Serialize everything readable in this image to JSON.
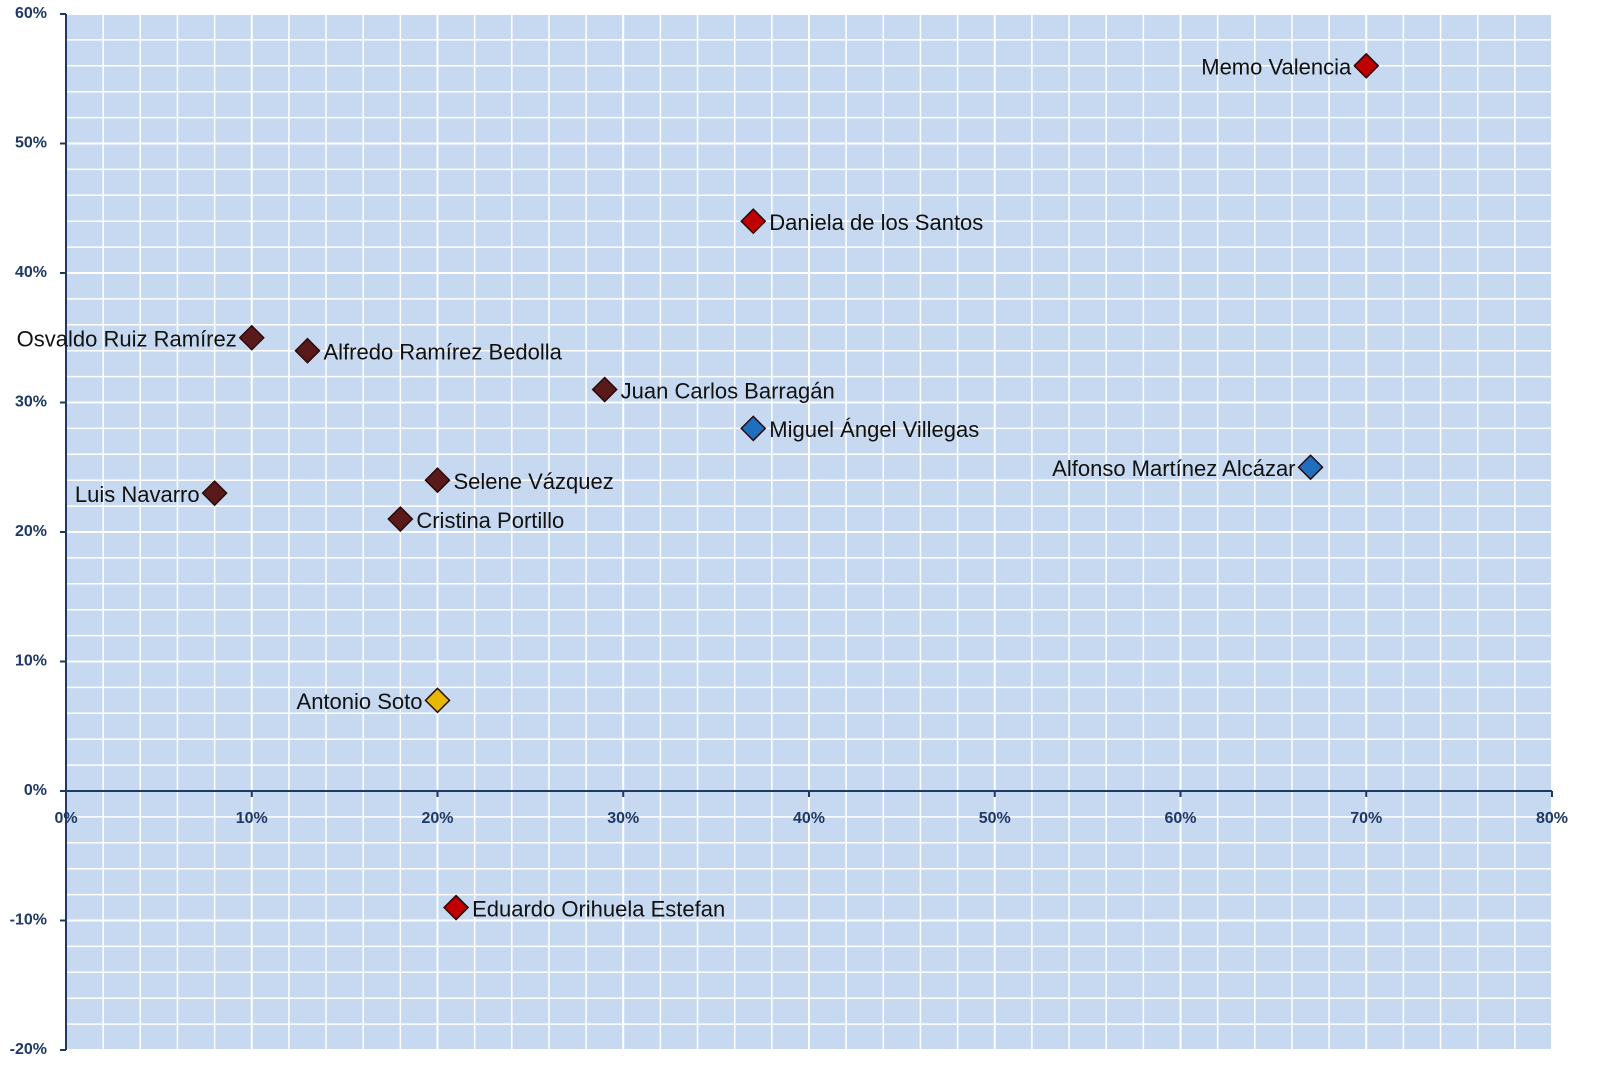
{
  "chart_data": {
    "type": "scatter",
    "x": [
      70,
      37,
      10,
      13,
      29,
      37,
      67,
      8,
      20,
      18,
      20,
      21
    ],
    "values": [
      56,
      44,
      35,
      34,
      31,
      28,
      25,
      23,
      24,
      21,
      7,
      -9
    ],
    "point_labels": [
      "Memo Valencia",
      "Daniela de los Santos",
      "Osvaldo Ruiz Ramírez",
      "Alfredo Ramírez Bedolla",
      "Juan Carlos Barragán",
      "Miguel Ángel Villegas",
      "Alfonso Martínez Alcázar",
      "Luis Navarro",
      "Selene Vázquez",
      "Cristina Portillo",
      "Antonio Soto",
      "Eduardo Orihuela Estefan"
    ],
    "label_positions": [
      "left",
      "right",
      "left",
      "right",
      "right",
      "right",
      "left",
      "left",
      "right",
      "right",
      "left",
      "right"
    ],
    "colors": [
      "#c00000",
      "#c00000",
      "#5a1a1a",
      "#5a1a1a",
      "#5a1a1a",
      "#1f6fbf",
      "#1f6fbf",
      "#5a1a1a",
      "#5a1a1a",
      "#5a1a1a",
      "#e6b800",
      "#c00000"
    ],
    "xlim": [
      0,
      80
    ],
    "xticks": [
      {
        "value": 0,
        "label": "0%"
      },
      {
        "value": 10,
        "label": "10%"
      },
      {
        "value": 20,
        "label": "20%"
      },
      {
        "value": 30,
        "label": "30%"
      },
      {
        "value": 40,
        "label": "40%"
      },
      {
        "value": 50,
        "label": "50%"
      },
      {
        "value": 60,
        "label": "60%"
      },
      {
        "value": 70,
        "label": "70%"
      },
      {
        "value": 80,
        "label": "80%"
      }
    ],
    "ylim": [
      -20,
      60
    ],
    "yticks": [
      {
        "value": -20,
        "label": "-20%"
      },
      {
        "value": -10,
        "label": "-10%"
      },
      {
        "value": 0,
        "label": "0%"
      },
      {
        "value": 10,
        "label": "10%"
      },
      {
        "value": 20,
        "label": "20%"
      },
      {
        "value": 30,
        "label": "30%"
      },
      {
        "value": 40,
        "label": "40%"
      },
      {
        "value": 50,
        "label": "50%"
      },
      {
        "value": 60,
        "label": "60%"
      }
    ],
    "grid": true
  }
}
